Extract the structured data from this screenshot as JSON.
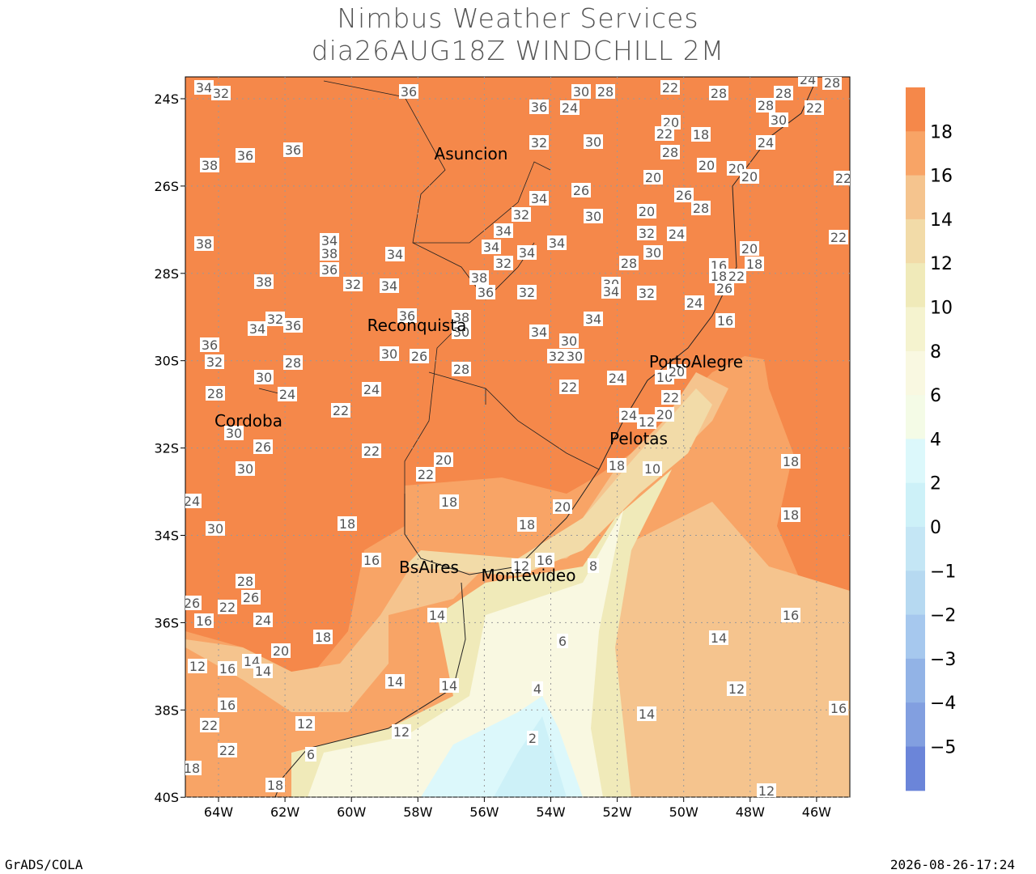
{
  "header": {
    "title": [
      "Nimbus Weather Services",
      "dia26AUG18Z WINDCHILL 2M"
    ]
  },
  "map": {
    "lat_ticks": [
      "24S",
      "26S",
      "28S",
      "30S",
      "32S",
      "34S",
      "36S",
      "38S",
      "40S"
    ],
    "lon_ticks": [
      "64W",
      "62W",
      "60W",
      "58W",
      "56W",
      "54W",
      "52W",
      "50W",
      "48W",
      "46W"
    ],
    "cities": [
      "Asuncion",
      "Reconquista",
      "PortoAlegre",
      "Cordoba",
      "Pelotas",
      "BsAires",
      "Montevideo"
    ],
    "contour_labels": [
      "36",
      "30",
      "28",
      "22",
      "28",
      "28",
      "24",
      "28",
      "34",
      "32",
      "36",
      "24",
      "22",
      "28",
      "30",
      "20",
      "18",
      "22",
      "30",
      "32",
      "36",
      "36",
      "38",
      "28",
      "24",
      "20",
      "20",
      "20",
      "20",
      "22",
      "34",
      "26",
      "26",
      "28",
      "30",
      "32",
      "20",
      "34",
      "32",
      "24",
      "22",
      "38",
      "34",
      "38",
      "36",
      "34",
      "34",
      "34",
      "34",
      "30",
      "32",
      "20",
      "18",
      "28",
      "38",
      "36",
      "32",
      "34",
      "32",
      "30",
      "34",
      "32",
      "38",
      "16",
      "18",
      "22",
      "26",
      "24",
      "16",
      "34",
      "36",
      "32",
      "36",
      "34",
      "38",
      "30",
      "34",
      "30",
      "32",
      "30",
      "30",
      "26",
      "36",
      "32",
      "28",
      "28",
      "30",
      "24",
      "22",
      "24",
      "16",
      "20",
      "22",
      "24",
      "28",
      "22",
      "24",
      "12",
      "20",
      "30",
      "26",
      "22",
      "20",
      "22",
      "18",
      "10",
      "30",
      "18",
      "18",
      "20",
      "24",
      "18",
      "30",
      "18",
      "18",
      "16",
      "12",
      "16",
      "8",
      "28",
      "26",
      "26",
      "22",
      "16",
      "24",
      "14",
      "16",
      "18",
      "14",
      "6",
      "20",
      "14",
      "12",
      "16",
      "14",
      "14",
      "14",
      "4",
      "12",
      "16",
      "14",
      "16",
      "22",
      "12",
      "12",
      "2",
      "22",
      "6",
      "18",
      "18",
      "12"
    ]
  },
  "colorbar": {
    "labels": [
      "18",
      "16",
      "14",
      "12",
      "10",
      "8",
      "6",
      "4",
      "2",
      "0",
      "−1",
      "−2",
      "−3",
      "−4",
      "−5"
    ],
    "colors": [
      "#f5884a",
      "#f8a466",
      "#f5c48e",
      "#f2dba8",
      "#f0eab9",
      "#f5f3cf",
      "#f9f8e1",
      "#f4fbe6",
      "#dcf8fb",
      "#cdf1f8",
      "#c4e6f5",
      "#b6d9f1",
      "#a6c8ee",
      "#92b3e6",
      "#829fe0",
      "#6b85d9"
    ]
  },
  "footer": {
    "left": "GrADS/COLA",
    "right": "2026-08-26-17:24"
  }
}
